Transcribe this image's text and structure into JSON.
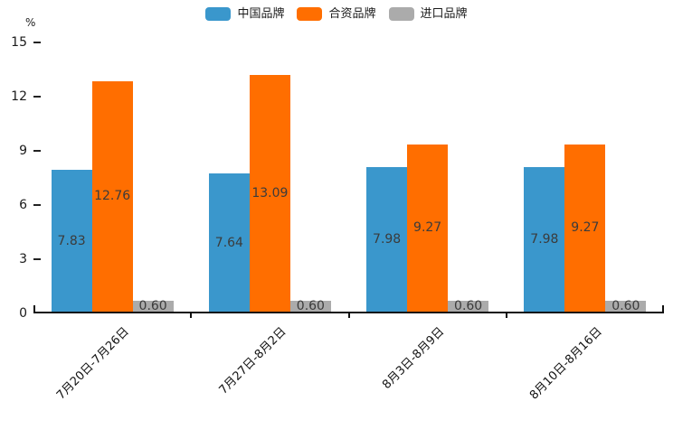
{
  "chart_data": {
    "type": "bar",
    "title": "",
    "unit": "%",
    "legend_position": "top",
    "grid": false,
    "ylim": [
      0,
      15
    ],
    "y_ticks": [
      0,
      3,
      6,
      9,
      12,
      15
    ],
    "value_label_decimals": 2,
    "categories": [
      "7月20日-7月26日",
      "7月27日-8月2日",
      "8月3日-8月9日",
      "8月10日-8月16日"
    ],
    "series": [
      {
        "name": "中国品牌",
        "color": "#3A97CC",
        "values": [
          7.83,
          7.64,
          7.98,
          7.98
        ]
      },
      {
        "name": "合资品牌",
        "color": "#FF6E00",
        "values": [
          12.76,
          13.09,
          9.27,
          9.27
        ]
      },
      {
        "name": "进口品牌",
        "color": "#ABABAB",
        "values": [
          0.6,
          0.6,
          0.6,
          0.6
        ]
      }
    ],
    "colors": {
      "axis": "#111111",
      "bar_label": "#3b3b3b",
      "tick_label": "#1a1a1a"
    }
  }
}
